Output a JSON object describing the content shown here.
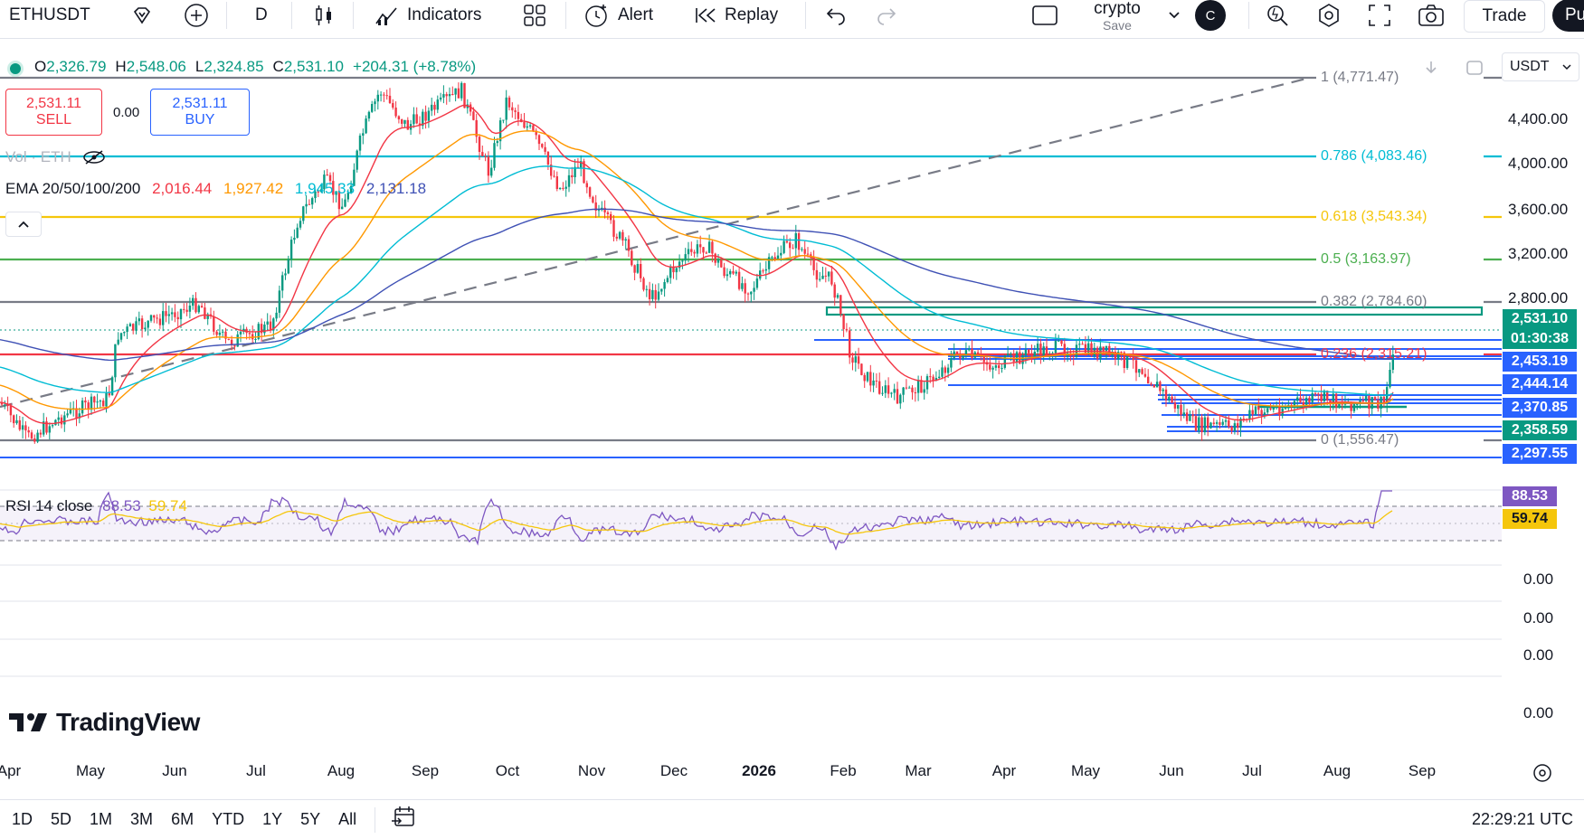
{
  "toolbar": {
    "symbol": "ETHUSDT",
    "interval": "D",
    "indicators_label": "Indicators",
    "alert_label": "Alert",
    "replay_label": "Replay",
    "layout_name": "crypto",
    "layout_save": "Save",
    "user_initial": "C",
    "trade_label": "Trade",
    "publish_label": "Pu"
  },
  "ohlc": {
    "o_label": "O",
    "o": "2,326.79",
    "h_label": "H",
    "h": "2,548.06",
    "l_label": "L",
    "l": "2,324.85",
    "c_label": "C",
    "c": "2,531.10",
    "change": "+204.31 (+8.78%)"
  },
  "trade": {
    "sell_price": "2,531.11",
    "sell_label": "SELL",
    "spread": "0.00",
    "buy_price": "2,531.11",
    "buy_label": "BUY"
  },
  "legends": {
    "vol": "Vol · ETH",
    "ema_name": "EMA 20/50/100/200",
    "ema20": "2,016.44",
    "ema50": "1,927.42",
    "ema100": "1,945.33",
    "ema200": "2,131.18",
    "rsi_name": "RSI 14 close",
    "rsi": "88.53",
    "rsi_ma": "59.74"
  },
  "fib_levels": [
    {
      "label": "1 (4,771.47)",
      "color": "#787b86"
    },
    {
      "label": "0.786 (4,083.46)",
      "color": "#00bcd4"
    },
    {
      "label": "0.618 (3,543.34)",
      "color": "#f5c60b"
    },
    {
      "label": "0.5 (3,163.97)",
      "color": "#4caf50"
    },
    {
      "label": "0.382 (2,784.60)",
      "color": "#787b86"
    },
    {
      "label": "0.236 (2,315.21)",
      "color": "#f23645"
    },
    {
      "label": "0 (1,556.47)",
      "color": "#787b86"
    }
  ],
  "price_axis": {
    "currency": "USDT",
    "ticks": [
      "4,400.00",
      "4,000.00",
      "3,600.00",
      "3,200.00",
      "2,800.00"
    ],
    "tags": [
      {
        "text": "2,531.10",
        "color": "#089981"
      },
      {
        "text": "01:30:38",
        "color": "#089981"
      },
      {
        "text": "2,453.19",
        "color": "#2962ff"
      },
      {
        "text": "2,444.14",
        "color": "#2962ff"
      },
      {
        "text": "2,370.85",
        "color": "#2962ff"
      },
      {
        "text": "2,358.59",
        "color": "#089981"
      },
      {
        "text": "2,297.55",
        "color": "#2962ff"
      }
    ],
    "rsi_tags": [
      {
        "text": "88.53",
        "color": "#7e57c2"
      },
      {
        "text": "59.74",
        "color": "#f5c60b"
      }
    ],
    "lower_ticks": [
      "0.00",
      "0.00",
      "0.00",
      "0.00"
    ]
  },
  "time_axis": [
    "Apr",
    "May",
    "Jun",
    "Jul",
    "Aug",
    "Sep",
    "Oct",
    "Nov",
    "Dec",
    "2026",
    "Feb",
    "Mar",
    "Apr",
    "May",
    "Jun",
    "Jul",
    "Aug",
    "Sep"
  ],
  "ranges": [
    "1D",
    "5D",
    "1M",
    "3M",
    "6M",
    "YTD",
    "1Y",
    "5Y",
    "All"
  ],
  "clock": "22:29:21 UTC",
  "brand": "TradingView",
  "colors": {
    "up": "#089981",
    "down": "#f23645",
    "ema20": "#f23645",
    "ema50": "#ff9800",
    "ema100": "#00bcd4",
    "ema200": "#3f51b5",
    "rsi": "#7e57c2"
  }
}
